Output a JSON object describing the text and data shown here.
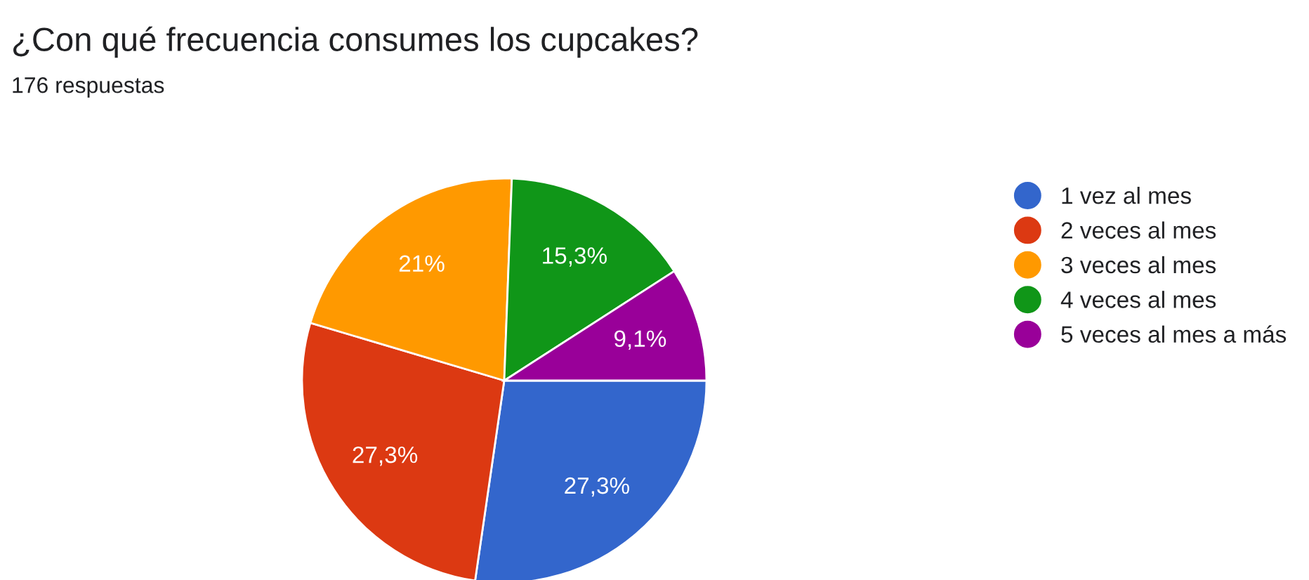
{
  "chart_data": {
    "type": "pie",
    "title": "¿Con qué frecuencia consumes los cupcakes?",
    "subtitle": "176 respuestas",
    "categories": [
      "1 vez al mes",
      "2 veces al mes",
      "3 veces al mes",
      "4 veces al mes",
      "5 veces al mes a más"
    ],
    "values": [
      27.3,
      27.3,
      21,
      15.3,
      9.1
    ],
    "value_labels": [
      "27,3%",
      "27,3%",
      "21%",
      "15,3%",
      "9,1%"
    ],
    "colors": [
      "#3366cc",
      "#dc3912",
      "#ff9900",
      "#109618",
      "#990099"
    ],
    "legend": "right"
  }
}
